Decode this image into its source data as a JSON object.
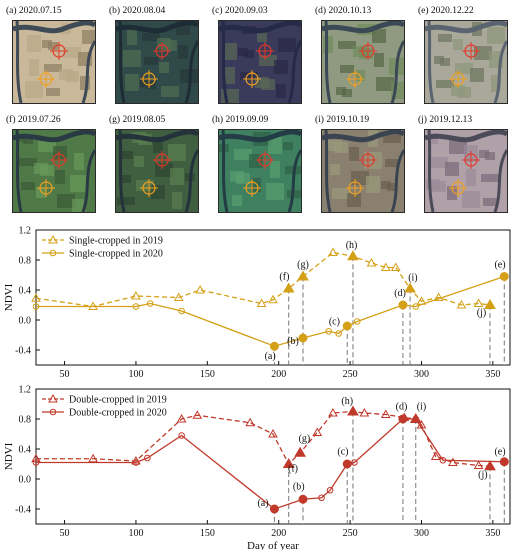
{
  "imagery": {
    "panels": [
      {
        "caption": "(a) 2020.07.15",
        "scene": "flooded"
      },
      {
        "caption": "(b) 2020.08.04",
        "scene": "water"
      },
      {
        "caption": "(c) 2020.09.03",
        "scene": "dark-water"
      },
      {
        "caption": "(d) 2020.10.13",
        "scene": "mixed"
      },
      {
        "caption": "(e) 2020.12.22",
        "scene": "pale"
      },
      {
        "caption": "(f) 2019.07.26",
        "scene": "green"
      },
      {
        "caption": "(g) 2019.08.05",
        "scene": "green-dark"
      },
      {
        "caption": "(h) 2019.09.09",
        "scene": "green-bright"
      },
      {
        "caption": "(i) 2019.10.19",
        "scene": "brown-mixed"
      },
      {
        "caption": "(j) 2019.12.13",
        "scene": "purple-pale"
      }
    ],
    "marker_colors": {
      "red": "#e0392b",
      "orange": "#f0a020"
    }
  },
  "chart_data": [
    {
      "type": "line",
      "ylabel": "NDVI",
      "xlim": [
        30,
        362
      ],
      "ylim": [
        -0.6,
        1.2
      ],
      "yticks": [
        -0.4,
        0.0,
        0.4,
        0.8,
        1.2
      ],
      "xticks": [
        50,
        100,
        150,
        200,
        250,
        300,
        350
      ],
      "color": "#d4a017",
      "series": [
        {
          "name": "Single-cropped in 2019",
          "style": "dashed-triangle",
          "x": [
            30,
            70,
            100,
            130,
            145,
            188,
            196,
            207,
            217,
            238,
            252,
            265,
            275,
            282,
            292,
            300,
            312,
            328,
            340,
            348
          ],
          "y": [
            0.29,
            0.18,
            0.32,
            0.3,
            0.4,
            0.22,
            0.27,
            0.42,
            0.58,
            0.9,
            0.85,
            0.76,
            0.7,
            0.7,
            0.42,
            0.25,
            0.3,
            0.2,
            0.22,
            0.2
          ]
        },
        {
          "name": "Single-cropped in 2020",
          "style": "solid-circle",
          "x": [
            30,
            100,
            110,
            132,
            197,
            217,
            235,
            242,
            248,
            255,
            287,
            296,
            358
          ],
          "y": [
            0.18,
            0.18,
            0.22,
            0.12,
            -0.35,
            -0.24,
            -0.15,
            -0.18,
            -0.08,
            -0.02,
            0.2,
            0.18,
            0.58
          ]
        }
      ],
      "annotations": [
        {
          "label": "(a)",
          "x": 197,
          "y": -0.35,
          "lx": 194,
          "ly": -0.52
        },
        {
          "label": "(b)",
          "x": 217,
          "y": -0.24,
          "lx": 210,
          "ly": -0.32
        },
        {
          "label": "(c)",
          "x": 248,
          "y": -0.08,
          "lx": 239,
          "ly": -0.06
        },
        {
          "label": "(d)",
          "x": 287,
          "y": 0.2,
          "lx": 285,
          "ly": 0.32
        },
        {
          "label": "(e)",
          "x": 358,
          "y": 0.58,
          "lx": 355,
          "ly": 0.7
        },
        {
          "label": "(f)",
          "x": 207,
          "y": 0.42,
          "lx": 204,
          "ly": 0.54
        },
        {
          "label": "(g)",
          "x": 217,
          "y": 0.58,
          "lx": 217,
          "ly": 0.7
        },
        {
          "label": "(h)",
          "x": 252,
          "y": 0.85,
          "lx": 251,
          "ly": 0.96
        },
        {
          "label": "(i)",
          "x": 292,
          "y": 0.42,
          "lx": 294,
          "ly": 0.53
        },
        {
          "label": "(j)",
          "x": 348,
          "y": 0.2,
          "lx": 342,
          "ly": 0.06
        }
      ],
      "vlines": [
        197,
        207,
        217,
        248,
        252,
        287,
        292,
        348,
        358
      ]
    },
    {
      "type": "line",
      "ylabel": "NDVI",
      "xlabel": "Day of year",
      "xlim": [
        30,
        362
      ],
      "ylim": [
        -0.6,
        1.2
      ],
      "yticks": [
        -0.4,
        0.0,
        0.4,
        0.8,
        1.2
      ],
      "xticks": [
        50,
        100,
        150,
        200,
        250,
        300,
        350
      ],
      "color": "#c0392b",
      "series": [
        {
          "name": "Double-cropped in 2019",
          "style": "dashed-triangle",
          "x": [
            30,
            70,
            100,
            132,
            143,
            180,
            196,
            207,
            215,
            227,
            238,
            252,
            260,
            275,
            288,
            296,
            300,
            310,
            322,
            340,
            348
          ],
          "y": [
            0.27,
            0.27,
            0.24,
            0.8,
            0.85,
            0.75,
            0.6,
            0.2,
            0.35,
            0.62,
            0.88,
            0.9,
            0.88,
            0.86,
            0.82,
            0.8,
            0.72,
            0.3,
            0.22,
            0.18,
            0.17
          ]
        },
        {
          "name": "Double-cropped in 2020",
          "style": "solid-circle",
          "x": [
            30,
            100,
            108,
            132,
            197,
            217,
            230,
            236,
            248,
            253,
            287,
            296,
            315,
            358
          ],
          "y": [
            0.22,
            0.22,
            0.28,
            0.58,
            -0.4,
            -0.27,
            -0.25,
            -0.15,
            0.2,
            0.22,
            0.8,
            0.8,
            0.25,
            0.23
          ]
        }
      ],
      "annotations": [
        {
          "label": "(a)",
          "x": 197,
          "y": -0.4,
          "lx": 189,
          "ly": -0.36
        },
        {
          "label": "(b)",
          "x": 217,
          "y": -0.27,
          "lx": 214,
          "ly": -0.14
        },
        {
          "label": "(c)",
          "x": 248,
          "y": 0.2,
          "lx": 245,
          "ly": 0.33
        },
        {
          "label": "(d)",
          "x": 287,
          "y": 0.8,
          "lx": 286,
          "ly": 0.93
        },
        {
          "label": "(e)",
          "x": 358,
          "y": 0.23,
          "lx": 355,
          "ly": 0.33
        },
        {
          "label": "(f)",
          "x": 207,
          "y": 0.2,
          "lx": 210,
          "ly": 0.1
        },
        {
          "label": "(g)",
          "x": 215,
          "y": 0.35,
          "lx": 218,
          "ly": 0.5
        },
        {
          "label": "(h)",
          "x": 252,
          "y": 0.9,
          "lx": 248,
          "ly": 1.0
        },
        {
          "label": "(i)",
          "x": 296,
          "y": 0.8,
          "lx": 300,
          "ly": 0.93
        },
        {
          "label": "(j)",
          "x": 348,
          "y": 0.17,
          "lx": 343,
          "ly": 0.02
        }
      ],
      "vlines": [
        197,
        207,
        217,
        248,
        252,
        287,
        296,
        348,
        358
      ]
    }
  ]
}
